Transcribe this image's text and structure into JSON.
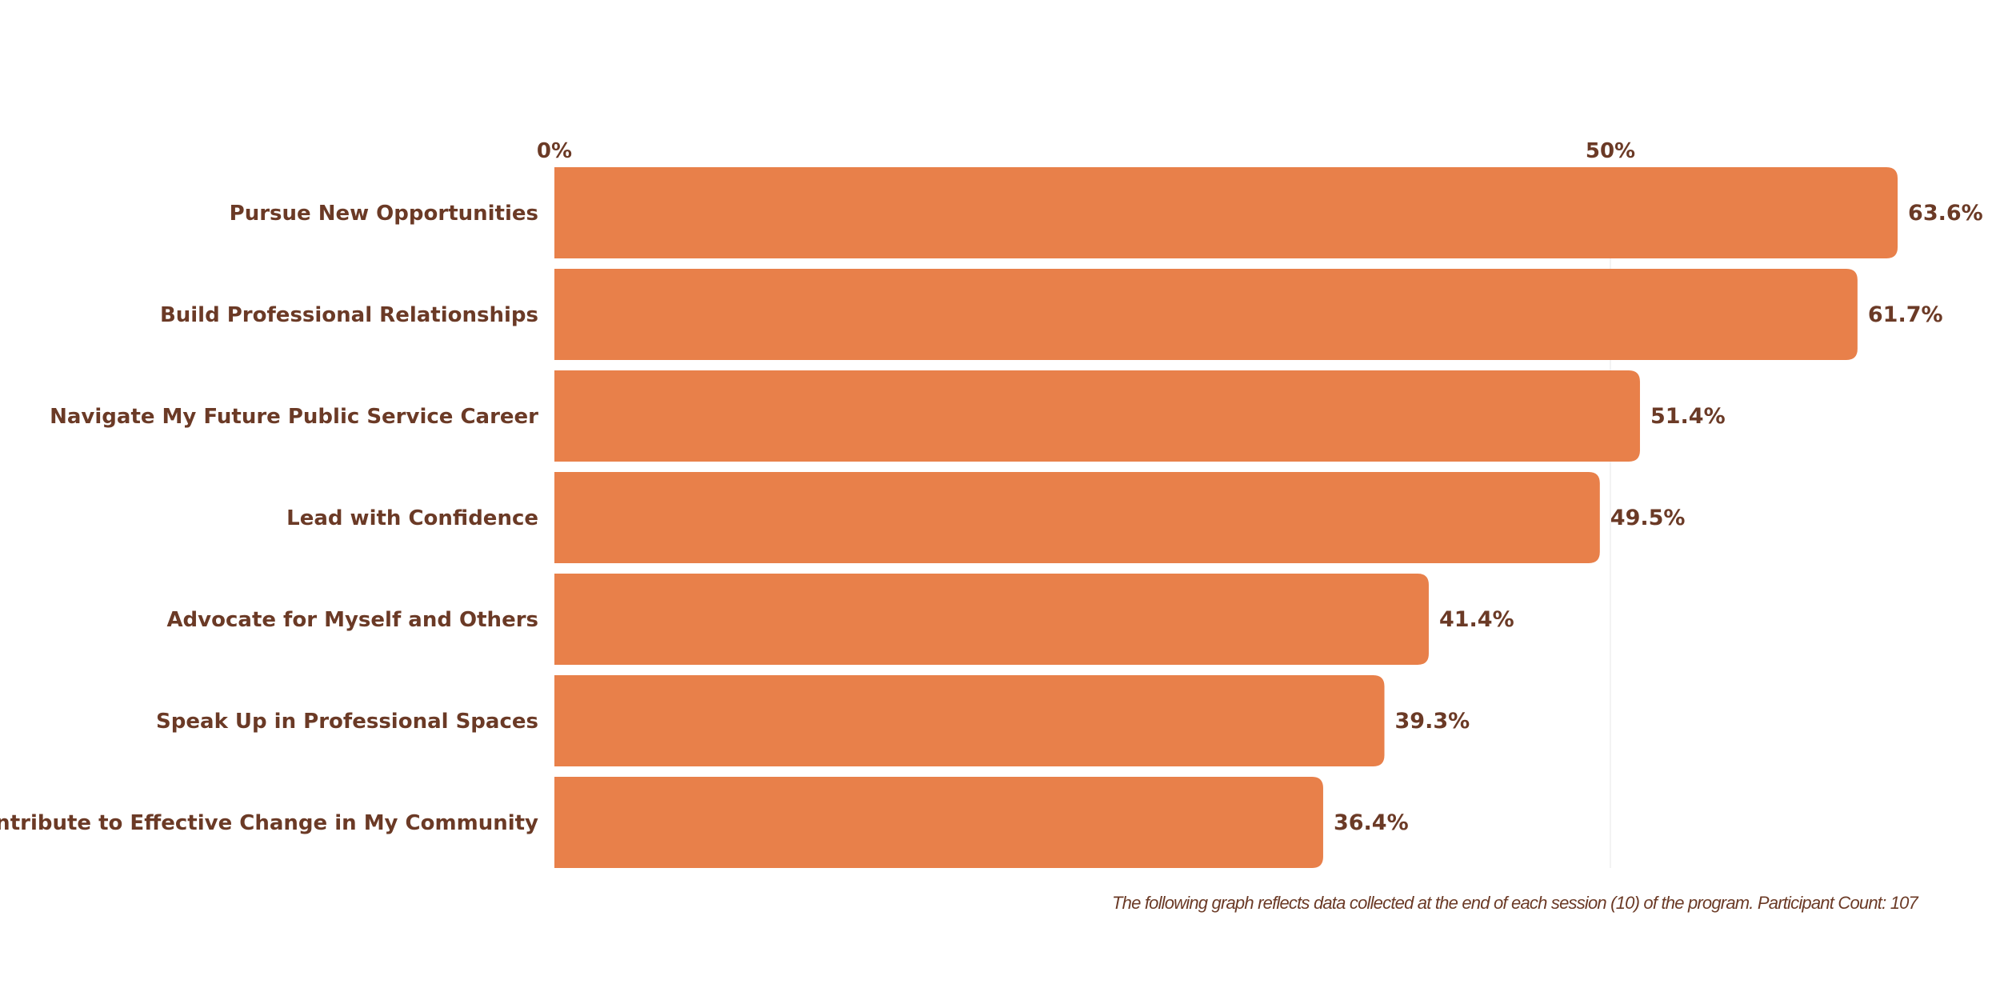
{
  "colors": {
    "bar": "#E8804A",
    "text": "#6B3A26",
    "gridline": "#F3F3F3"
  },
  "chart_data": {
    "type": "bar",
    "orientation": "horizontal",
    "categories": [
      "Pursue New Opportunities",
      "Build Professional Relationships",
      "Navigate My Future Public Service Career",
      "Lead with Confidence",
      "Advocate for Myself and Others",
      "Speak Up in Professional Spaces",
      "Contribute to Effective Change in My Community"
    ],
    "values": [
      63.6,
      61.7,
      51.4,
      49.5,
      41.4,
      39.3,
      36.4
    ],
    "value_labels": [
      "63.6%",
      "61.7%",
      "51.4%",
      "49.5%",
      "41.4%",
      "39.3%",
      "36.4%"
    ],
    "xlim": [
      0,
      100
    ],
    "x_ticks": [
      0,
      50
    ],
    "x_tick_labels": [
      "0%",
      "50%"
    ],
    "x_axis_position": "top",
    "grid": true,
    "title": "",
    "xlabel": "",
    "ylabel": ""
  },
  "footnote": "The following graph reflects data collected at the end of each session (10) of the program.  Participant Count: 107"
}
